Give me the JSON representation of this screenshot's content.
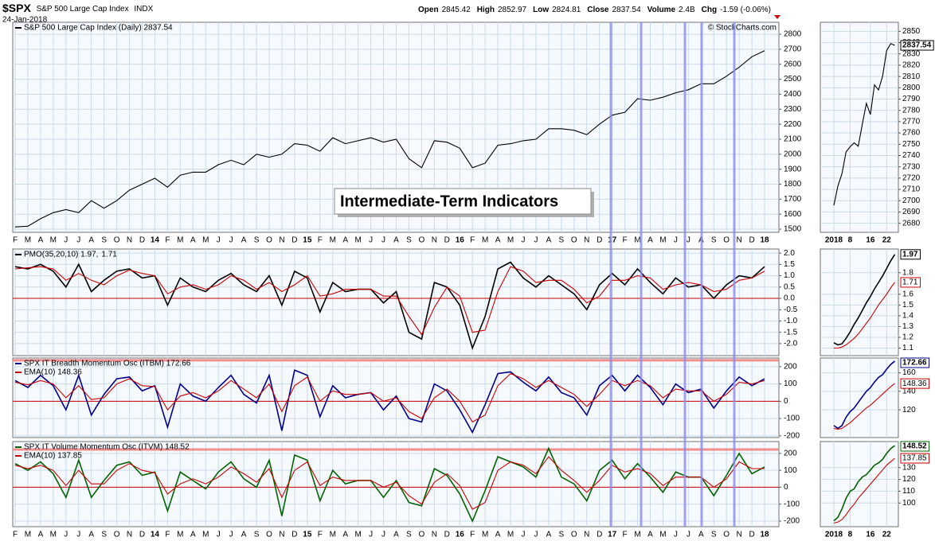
{
  "header": {
    "symbol": "$SPX",
    "name": "S&P 500 Large Cap Index",
    "exchange": "INDX",
    "date": "24-Jan-2018",
    "quote": [
      [
        "Open",
        "2845.42"
      ],
      [
        "High",
        "2852.97"
      ],
      [
        "Low",
        "2824.81"
      ],
      [
        "Close",
        "2837.54"
      ],
      [
        "Volume",
        "2.4B"
      ],
      [
        "Chg",
        "-1.59 (-0.06%)"
      ]
    ],
    "watermark": "© StockCharts.com"
  },
  "chart_data": [
    {
      "type": "line",
      "annotation": "Intermediate-Term Indicators",
      "categories": [
        "F",
        "M",
        "A",
        "M",
        "J",
        "J",
        "A",
        "S",
        "O",
        "N",
        "D",
        "14",
        "F",
        "M",
        "A",
        "M",
        "J",
        "J",
        "A",
        "S",
        "O",
        "N",
        "D",
        "15",
        "F",
        "M",
        "A",
        "M",
        "J",
        "J",
        "A",
        "S",
        "O",
        "N",
        "D",
        "16",
        "F",
        "M",
        "A",
        "M",
        "J",
        "J",
        "A",
        "S",
        "O",
        "N",
        "D",
        "17",
        "F",
        "M",
        "A",
        "M",
        "J",
        "J",
        "A",
        "S",
        "O",
        "N",
        "D",
        "18"
      ],
      "series": [
        {
          "name": "S&P 500 Large Cap Index (Daily) 2837.54",
          "color": "#000000",
          "values": [
            1515,
            1520,
            1570,
            1610,
            1630,
            1610,
            1690,
            1640,
            1690,
            1760,
            1800,
            1840,
            1780,
            1860,
            1880,
            1880,
            1930,
            1960,
            1930,
            2000,
            1980,
            2000,
            2070,
            2060,
            2020,
            2110,
            2070,
            2090,
            2110,
            2080,
            2100,
            1970,
            1910,
            2090,
            2080,
            2040,
            1910,
            1940,
            2060,
            2070,
            2090,
            2100,
            2170,
            2170,
            2160,
            2130,
            2200,
            2260,
            2280,
            2370,
            2360,
            2380,
            2410,
            2430,
            2470,
            2470,
            2520,
            2580,
            2650,
            2690
          ]
        }
      ],
      "ylim": [
        1479,
        2880
      ],
      "yticks": [
        1500,
        1600,
        1700,
        1800,
        1900,
        2000,
        2100,
        2200,
        2300,
        2400,
        2500,
        2600,
        2700,
        2800
      ],
      "grid": true
    },
    {
      "type": "line",
      "categories": [
        "2018",
        null,
        null,
        null,
        "8",
        null,
        null,
        null,
        null,
        "16",
        null,
        null,
        null,
        "22",
        null,
        null
      ],
      "series": [
        {
          "color": "#000000",
          "values": [
            2695.81,
            2713.06,
            2723.99,
            2743.15,
            2747.71,
            2751.29,
            2748.23,
            2767.56,
            2786.24,
            2776.42,
            2802.56,
            2798.03,
            2810.3,
            2832.97,
            2839.13,
            2837.54
          ]
        }
      ],
      "ylim": [
        2672,
        2858
      ],
      "yticks": [
        2680,
        2690,
        2700,
        2710,
        2720,
        2730,
        2740,
        2750,
        2760,
        2770,
        2780,
        2790,
        2800,
        2810,
        2820,
        2830,
        2840,
        2850
      ],
      "grid": true
    },
    {
      "type": "line",
      "series": [
        {
          "name": "PMO(35,20,10) 1.97,",
          "color": "#000000",
          "values": [
            1.4,
            1.3,
            1.5,
            1.2,
            0.5,
            1.5,
            0.3,
            0.8,
            1.2,
            1.3,
            0.9,
            1.0,
            -0.3,
            0.9,
            0.5,
            0.3,
            0.8,
            1.1,
            0.6,
            0.3,
            1.0,
            -0.3,
            1.2,
            0.9,
            -0.6,
            0.7,
            0.3,
            0.4,
            0.4,
            -0.2,
            0.3,
            -1.5,
            -1.8,
            0.7,
            0.5,
            -0.3,
            -2.2,
            -0.8,
            1.3,
            1.6,
            0.9,
            0.5,
            1.0,
            0.6,
            0.2,
            -0.5,
            0.6,
            1.1,
            0.6,
            1.3,
            0.7,
            0.2,
            0.9,
            0.5,
            0.6,
            0.0,
            0.6,
            1.0,
            0.9,
            1.4
          ]
        },
        {
          "name": "1.71",
          "color": "#cc0000",
          "values": [
            1.3,
            1.35,
            1.4,
            1.3,
            0.8,
            1.1,
            0.8,
            0.6,
            1.0,
            1.25,
            1.1,
            1.0,
            0.2,
            0.5,
            0.6,
            0.4,
            0.6,
            1.0,
            0.8,
            0.4,
            0.7,
            0.3,
            0.6,
            1.0,
            0.1,
            0.2,
            0.4,
            0.4,
            0.4,
            0.1,
            0.1,
            -0.8,
            -1.6,
            -0.4,
            0.5,
            0.1,
            -1.5,
            -1.4,
            0.3,
            1.4,
            1.2,
            0.7,
            0.8,
            0.8,
            0.4,
            -0.2,
            0.1,
            0.8,
            0.8,
            1.0,
            0.9,
            0.4,
            0.6,
            0.7,
            0.6,
            0.3,
            0.4,
            0.8,
            0.9,
            1.2
          ]
        }
      ],
      "ylim": [
        -2.53,
        2.18
      ],
      "yticks": [
        {
          "value": 2,
          "label": "2.0"
        },
        1.5,
        {
          "value": 1,
          "label": "1.0"
        },
        0.5,
        {
          "value": 0,
          "label": "0.0"
        },
        -0.5,
        {
          "value": -1,
          "label": "-1.0"
        },
        -1.5,
        {
          "value": -2,
          "label": "-2.0"
        }
      ],
      "hlines": [
        {
          "value": 0,
          "color": "#cc0000"
        }
      ],
      "grid": true
    },
    {
      "type": "line",
      "series": [
        {
          "color": "#000000",
          "values": [
            1.15,
            1.13,
            1.14,
            1.19,
            1.25,
            1.32,
            1.38,
            1.45,
            1.52,
            1.58,
            1.65,
            1.71,
            1.77,
            1.84,
            1.91,
            1.97
          ]
        },
        {
          "color": "#cc0000",
          "values": [
            1.1,
            1.1,
            1.11,
            1.13,
            1.16,
            1.19,
            1.23,
            1.28,
            1.33,
            1.38,
            1.44,
            1.5,
            1.55,
            1.6,
            1.66,
            1.71
          ]
        }
      ],
      "ylim": [
        1.03,
        2.02
      ],
      "yticks": [
        1.1,
        1.2,
        1.3,
        1.4,
        1.5,
        1.6,
        1.8
      ],
      "grid": true
    },
    {
      "type": "line",
      "series": [
        {
          "name": "SPX IT Breadth Momentum Osc (ITBM) 172.66",
          "color": "#00008b",
          "values": [
            120,
            80,
            150,
            90,
            -50,
            150,
            -80,
            40,
            130,
            140,
            60,
            90,
            -150,
            100,
            30,
            0,
            80,
            150,
            40,
            -10,
            150,
            -170,
            180,
            150,
            -90,
            90,
            20,
            40,
            50,
            -50,
            30,
            -100,
            -120,
            100,
            60,
            -50,
            -180,
            -20,
            160,
            170,
            110,
            60,
            140,
            50,
            20,
            -80,
            90,
            150,
            60,
            150,
            80,
            -20,
            100,
            50,
            70,
            -40,
            60,
            140,
            90,
            130
          ]
        },
        {
          "name": "EMA(10) 148.36",
          "color": "#cc0000",
          "values": [
            110,
            95,
            120,
            100,
            20,
            90,
            10,
            20,
            100,
            130,
            90,
            85,
            -50,
            30,
            50,
            20,
            60,
            120,
            70,
            20,
            100,
            -60,
            90,
            140,
            0,
            60,
            40,
            40,
            50,
            0,
            20,
            -60,
            -100,
            20,
            70,
            0,
            -120,
            -80,
            90,
            160,
            130,
            80,
            120,
            80,
            40,
            -30,
            40,
            120,
            90,
            120,
            90,
            20,
            70,
            60,
            60,
            0,
            40,
            110,
            100,
            120
          ]
        }
      ],
      "ylim": [
        -210,
        250
      ],
      "yticks": [
        200,
        100,
        0,
        -100,
        -200
      ],
      "hlines": [
        {
          "value": 0,
          "color": "#cc0000"
        },
        {
          "value": 237,
          "color": "#f08f8f"
        }
      ],
      "grid": true
    },
    {
      "type": "line",
      "series": [
        {
          "color": "#00008b",
          "values": [
            103,
            100,
            103,
            112,
            118,
            122,
            128,
            134,
            140,
            144,
            150,
            155,
            158,
            164,
            169,
            172.66
          ]
        },
        {
          "color": "#cc0000",
          "values": [
            100,
            99,
            100,
            103,
            106,
            110,
            114,
            118,
            122,
            125,
            129,
            133,
            137,
            141,
            145,
            148.36
          ]
        }
      ],
      "ylim": [
        90,
        176
      ],
      "yticks": [
        120,
        140,
        160
      ],
      "grid": true
    },
    {
      "type": "line",
      "categories": [
        "F",
        "M",
        "A",
        "M",
        "J",
        "J",
        "A",
        "S",
        "O",
        "N",
        "D",
        "14",
        "F",
        "M",
        "A",
        "M",
        "J",
        "J",
        "A",
        "S",
        "O",
        "N",
        "D",
        "15",
        "F",
        "M",
        "A",
        "M",
        "J",
        "J",
        "A",
        "S",
        "O",
        "N",
        "D",
        "16",
        "F",
        "M",
        "A",
        "M",
        "J",
        "J",
        "A",
        "S",
        "O",
        "N",
        "D",
        "17",
        "F",
        "M",
        "A",
        "M",
        "J",
        "J",
        "A",
        "S",
        "O",
        "N",
        "D",
        "18"
      ],
      "series": [
        {
          "name": "SPX IT Volume Momentum Osc (ITVM) 148.52",
          "color": "#006400",
          "values": [
            140,
            100,
            150,
            80,
            -60,
            160,
            -60,
            40,
            130,
            150,
            70,
            90,
            -140,
            90,
            40,
            -10,
            90,
            150,
            50,
            0,
            160,
            -170,
            190,
            160,
            -80,
            100,
            20,
            40,
            40,
            -60,
            40,
            -90,
            -110,
            110,
            70,
            -40,
            -200,
            -20,
            180,
            150,
            120,
            60,
            230,
            60,
            20,
            -80,
            100,
            160,
            50,
            140,
            60,
            -30,
            90,
            60,
            60,
            -50,
            70,
            200,
            80,
            120
          ]
        },
        {
          "name": "EMA(10) 137.85",
          "color": "#cc0000",
          "values": [
            130,
            110,
            130,
            100,
            10,
            100,
            20,
            20,
            100,
            140,
            100,
            85,
            -40,
            20,
            50,
            20,
            60,
            120,
            80,
            30,
            110,
            -60,
            100,
            150,
            10,
            60,
            40,
            40,
            40,
            0,
            30,
            -50,
            -100,
            30,
            80,
            10,
            -130,
            -90,
            100,
            150,
            130,
            80,
            180,
            100,
            40,
            -30,
            40,
            130,
            90,
            110,
            80,
            10,
            60,
            60,
            60,
            0,
            50,
            150,
            110,
            110
          ]
        }
      ],
      "ylim": [
        -233,
        270
      ],
      "yticks": [
        200,
        100,
        0,
        -100,
        -200
      ],
      "hlines": [
        {
          "value": 0,
          "color": "#cc0000"
        },
        {
          "value": 223,
          "color": "#f08f8f"
        }
      ],
      "grid": true
    },
    {
      "type": "line",
      "categories": [
        "2018",
        null,
        null,
        null,
        "8",
        null,
        null,
        null,
        null,
        "16",
        null,
        null,
        null,
        "22",
        null,
        null
      ],
      "series": [
        {
          "color": "#006400",
          "values": [
            85,
            88,
            95,
            104,
            110,
            112,
            118,
            122,
            124,
            128,
            132,
            134,
            137,
            142,
            146,
            148.52
          ]
        },
        {
          "color": "#cc0000",
          "values": [
            83,
            84,
            86,
            90,
            95,
            99,
            104,
            108,
            112,
            116,
            120,
            124,
            128,
            132,
            135,
            137.85
          ]
        }
      ],
      "ylim": [
        80,
        152
      ],
      "yticks": [
        100,
        110,
        120,
        130
      ],
      "grid": true
    }
  ]
}
